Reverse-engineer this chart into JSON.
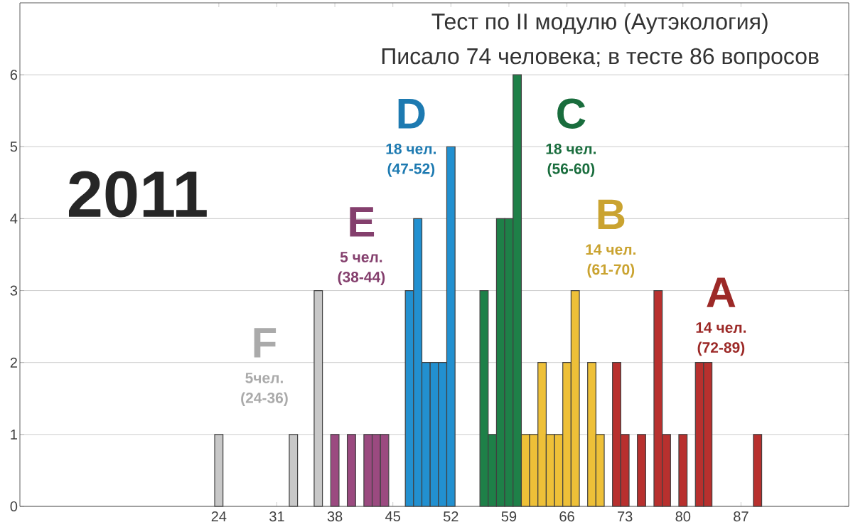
{
  "chart_data": {
    "type": "bar",
    "title": "Тест по II модулю (Аутэкология)",
    "subtitle": "Писало 74 человека;   в тесте 86 вопросов",
    "xlim": [
      0,
      100
    ],
    "xticks": [
      24,
      31,
      38,
      45,
      52,
      59,
      66,
      73,
      80,
      87
    ],
    "ylim": [
      0,
      7
    ],
    "yticks": [
      0,
      1,
      2,
      3,
      4,
      5,
      6
    ],
    "grid": "y",
    "series": [
      {
        "color": "#c8c8c8",
        "x": [
          24,
          33,
          36
        ],
        "values": [
          1,
          1,
          3
        ]
      },
      {
        "color": "#9b4a80",
        "x": [
          38,
          40,
          42,
          43,
          44
        ],
        "values": [
          1,
          1,
          1,
          1,
          1
        ]
      },
      {
        "color": "#2290d0",
        "x": [
          47,
          48,
          49,
          50,
          51,
          52
        ],
        "values": [
          3,
          4,
          2,
          2,
          2,
          5
        ]
      },
      {
        "color": "#1e8048",
        "x": [
          56,
          57,
          58,
          59,
          60
        ],
        "values": [
          3,
          1,
          4,
          4,
          6
        ]
      },
      {
        "color": "#eec038",
        "x": [
          61,
          62,
          63,
          64,
          65,
          66,
          67,
          69,
          70
        ],
        "values": [
          1,
          1,
          2,
          1,
          1,
          2,
          3,
          2,
          1
        ]
      },
      {
        "color": "#b8302e",
        "x": [
          72,
          73,
          75,
          77,
          78,
          80,
          82,
          83,
          89
        ],
        "values": [
          2,
          1,
          1,
          3,
          1,
          1,
          2,
          2,
          1
        ]
      }
    ],
    "annotations": [
      "F",
      "5чел.",
      "(24-36)",
      "E",
      "5 чел.",
      "(38-44)",
      "D",
      "18 чел.",
      "(47-52)",
      "C",
      "18 чел.",
      "(56-60)",
      "B",
      "14 чел.",
      "(61-70)",
      "A",
      "14 чел.",
      "(72-89)",
      "2011"
    ]
  }
}
